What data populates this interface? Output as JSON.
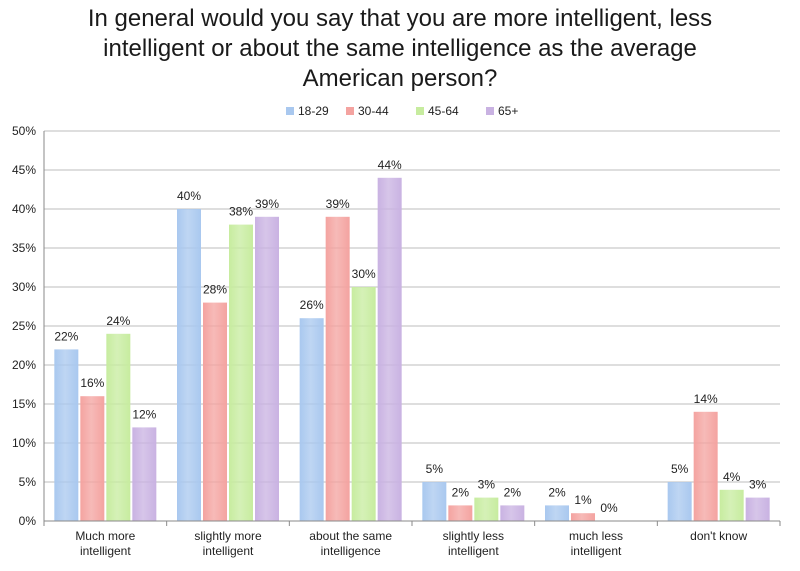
{
  "chart_data": {
    "type": "bar",
    "title": [
      "In general would you say that you are more intelligent, less",
      "intelligent or about the same intelligence as the average",
      "American person?"
    ],
    "categories": [
      [
        "Much more",
        "intelligent"
      ],
      [
        "slightly more",
        "intelligent"
      ],
      [
        "about the same",
        "intelligence"
      ],
      [
        "slightly less",
        "intelligent"
      ],
      [
        "much less",
        "intelligent"
      ],
      [
        "don't know"
      ]
    ],
    "series": [
      {
        "name": "18-29",
        "color": "#a9c8ef",
        "values": [
          22,
          40,
          26,
          5,
          2,
          5
        ]
      },
      {
        "name": "30-44",
        "color": "#f4a3a0",
        "values": [
          16,
          28,
          39,
          2,
          1,
          14
        ]
      },
      {
        "name": "45-64",
        "color": "#c7ec9f",
        "values": [
          24,
          38,
          30,
          3,
          0,
          4
        ]
      },
      {
        "name": "65+",
        "color": "#c9b2e2",
        "values": [
          12,
          39,
          44,
          2,
          0,
          3
        ]
      }
    ],
    "data_labels": [
      [
        "22%",
        "40%",
        "26%",
        "5%",
        "2%",
        "5%"
      ],
      [
        "16%",
        "28%",
        "39%",
        "2%",
        "1%",
        "14%"
      ],
      [
        "24%",
        "38%",
        "30%",
        "3%",
        "0%",
        "4%"
      ],
      [
        "12%",
        "39%",
        "44%",
        "2%",
        "",
        "3%"
      ]
    ],
    "ylim": [
      0,
      50
    ],
    "yticks": [
      "0%",
      "5%",
      "10%",
      "15%",
      "20%",
      "25%",
      "30%",
      "35%",
      "40%",
      "45%",
      "50%"
    ],
    "grid": true,
    "legend_position": "top"
  }
}
